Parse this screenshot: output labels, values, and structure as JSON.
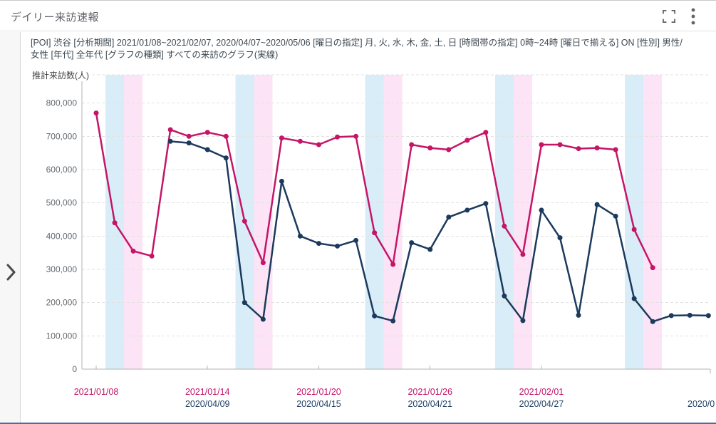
{
  "header": {
    "title": "デイリー来訪速報"
  },
  "filters": {
    "line1": "[POI] 渋谷  [分析期間] 2021/01/08~2021/02/07, 2020/04/07~2020/05/06  [曜日の指定] 月, 火, 水, 木, 金, 土, 日  [時間帯の指定] 0時~24時  [曜日で揃える] ON  [性別] 男性/",
    "line2": "女性  [年代] 全年代  [グラフの種類] すべての来訪のグラフ(実線)"
  },
  "chart_data": {
    "type": "line",
    "title": "デイリー来訪速報",
    "ylabel": "推計来訪数(人)",
    "ylim": [
      0,
      900000
    ],
    "y_ticks": [
      0,
      100000,
      200000,
      300000,
      400000,
      500000,
      600000,
      700000,
      800000
    ],
    "grid": "dashed horizontal, unlabeled top line at 900000",
    "align_by_weekday": "ON",
    "x_axis": {
      "ticks": [
        {
          "day_index": 0,
          "line1": "2021/01/08",
          "line2": ""
        },
        {
          "day_index": 6,
          "line1": "2021/01/14",
          "line2": "2020/04/09"
        },
        {
          "day_index": 12,
          "line1": "2021/01/20",
          "line2": "2020/04/15"
        },
        {
          "day_index": 18,
          "line1": "2021/01/26",
          "line2": "2020/04/21"
        },
        {
          "day_index": 24,
          "line1": "2021/02/01",
          "line2": "2020/04/27"
        }
      ],
      "clipped_right_label": "2020/0",
      "row1_color": "#c41567",
      "row2_color": "#1f3f63"
    },
    "weekend_bands": {
      "saturday_day_indices": [
        1,
        8,
        15,
        22,
        29
      ],
      "sunday_day_indices": [
        2,
        9,
        16,
        23,
        30
      ],
      "saturday_color": "#d9edf9",
      "sunday_color": "#fce4f6"
    },
    "series": [
      {
        "name": "2021/01/08~2021/02/07",
        "color": "#c41567",
        "start_day_index": 0,
        "values": [
          770000,
          440000,
          355000,
          340000,
          720000,
          700000,
          712000,
          700000,
          445000,
          320000,
          695000,
          685000,
          675000,
          698000,
          700000,
          410000,
          315000,
          675000,
          665000,
          660000,
          688000,
          712000,
          430000,
          345000,
          675000,
          675000,
          663000,
          665000,
          660000,
          420000,
          305000
        ]
      },
      {
        "name": "2020/04/07~2020/05/06",
        "color": "#1b3a5c",
        "start_day_index": 4,
        "values": [
          685000,
          680000,
          660000,
          635000,
          200000,
          150000,
          565000,
          400000,
          378000,
          370000,
          387000,
          160000,
          145000,
          380000,
          360000,
          457000,
          478000,
          498000,
          220000,
          146000,
          478000,
          395000,
          162000,
          495000,
          460000,
          212000,
          143000,
          161000,
          162000,
          161000
        ]
      }
    ]
  }
}
